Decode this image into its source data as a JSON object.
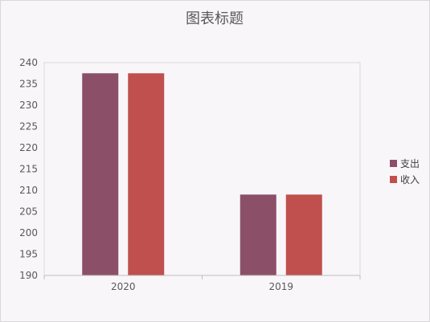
{
  "chart_data": {
    "type": "bar",
    "title": "图表标题",
    "categories": [
      "2020",
      "2019"
    ],
    "series": [
      {
        "name": "支出",
        "values": [
          237.5,
          209
        ],
        "color": "#8B4F68"
      },
      {
        "name": "收入",
        "values": [
          237.5,
          209
        ],
        "color": "#C0504D"
      }
    ],
    "ylim": [
      190,
      240
    ],
    "yticks": [
      190,
      195,
      200,
      205,
      210,
      215,
      220,
      225,
      230,
      235,
      240
    ],
    "grid": false,
    "legend_position": "right",
    "xlabel": "",
    "ylabel": ""
  }
}
